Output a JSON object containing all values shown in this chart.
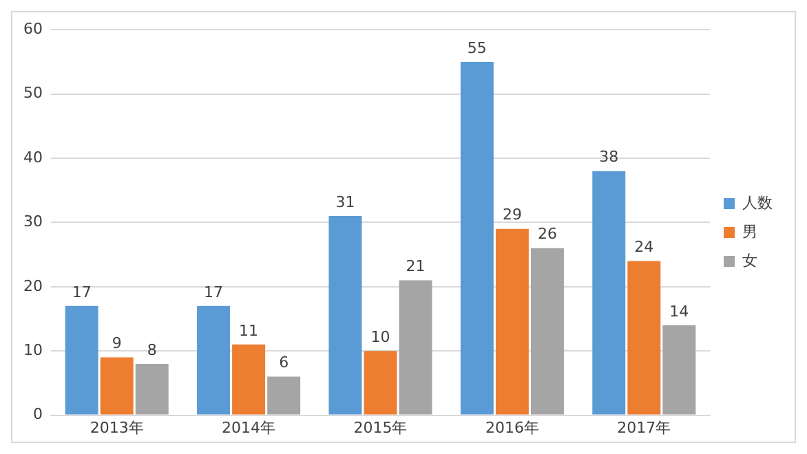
{
  "chart_data": {
    "type": "bar",
    "categories": [
      "2013年",
      "2014年",
      "2015年",
      "2016年",
      "2017年"
    ],
    "series": [
      {
        "name": "人数",
        "color": "#5b9bd5",
        "values": [
          17,
          17,
          31,
          55,
          38
        ]
      },
      {
        "name": "男",
        "color": "#ed7d31",
        "values": [
          9,
          11,
          10,
          29,
          24
        ]
      },
      {
        "name": "女",
        "color": "#a5a5a5",
        "values": [
          8,
          6,
          21,
          26,
          14
        ]
      }
    ],
    "ylim": [
      0,
      60
    ],
    "yticks": [
      0,
      10,
      20,
      30,
      40,
      50,
      60
    ],
    "grid": "y",
    "legend": "right",
    "data_labels": true
  }
}
